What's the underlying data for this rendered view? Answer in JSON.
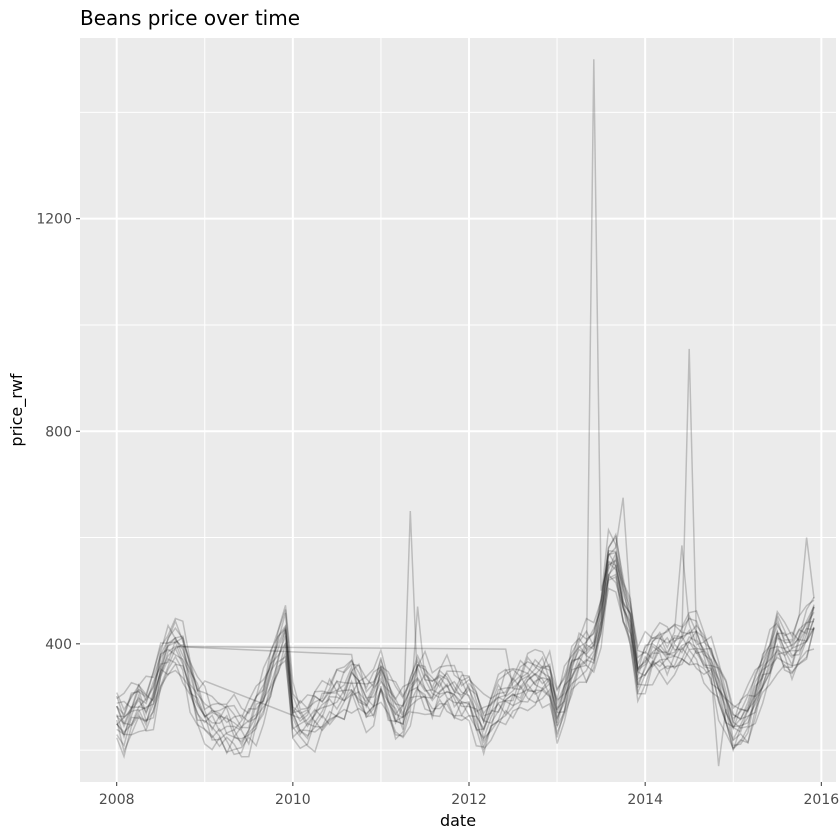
{
  "chart_data": {
    "type": "line",
    "title": "Beans price over time",
    "xlabel": "date",
    "ylabel": "price_rwf",
    "x_ticks": [
      "2008",
      "2010",
      "2012",
      "2014",
      "2016"
    ],
    "y_ticks": [
      400,
      800,
      1200
    ],
    "xlim": [
      "2007-08-01",
      "2016-03-01"
    ],
    "ylim": [
      140,
      1540
    ],
    "grid": true,
    "legend": "none",
    "line_color": "#000000",
    "line_alpha": 0.2,
    "background_color": "#ebebeb",
    "gridline_color": "#ffffff",
    "x": [
      "2008-01",
      "2008-02",
      "2008-03",
      "2008-04",
      "2008-05",
      "2008-06",
      "2008-07",
      "2008-08",
      "2008-09",
      "2008-10",
      "2008-11",
      "2008-12",
      "2009-01",
      "2009-02",
      "2009-03",
      "2009-04",
      "2009-05",
      "2009-06",
      "2009-07",
      "2009-08",
      "2009-09",
      "2009-10",
      "2009-11",
      "2009-12",
      "2010-01",
      "2010-02",
      "2010-03",
      "2010-04",
      "2010-05",
      "2010-06",
      "2010-07",
      "2010-08",
      "2010-09",
      "2010-10",
      "2010-11",
      "2010-12",
      "2011-01",
      "2011-02",
      "2011-03",
      "2011-04",
      "2011-05",
      "2011-06",
      "2011-07",
      "2011-08",
      "2011-09",
      "2011-10",
      "2011-11",
      "2011-12",
      "2012-01",
      "2012-02",
      "2012-03",
      "2012-04",
      "2012-05",
      "2012-06",
      "2012-07",
      "2012-08",
      "2012-09",
      "2012-10",
      "2012-11",
      "2012-12",
      "2013-01",
      "2013-02",
      "2013-03",
      "2013-04",
      "2013-05",
      "2013-06",
      "2013-07",
      "2013-08",
      "2013-09",
      "2013-10",
      "2013-11",
      "2013-12",
      "2014-01",
      "2014-02",
      "2014-03",
      "2014-04",
      "2014-05",
      "2014-06",
      "2014-07",
      "2014-08",
      "2014-09",
      "2014-10",
      "2014-11",
      "2014-12",
      "2015-01",
      "2015-02",
      "2015-03",
      "2015-04",
      "2015-05",
      "2015-06",
      "2015-07",
      "2015-08",
      "2015-09",
      "2015-10",
      "2015-11",
      "2015-12"
    ],
    "base_profile": [
      265,
      245,
      270,
      290,
      275,
      300,
      355,
      385,
      395,
      380,
      330,
      290,
      265,
      255,
      250,
      245,
      240,
      235,
      245,
      270,
      300,
      345,
      385,
      420,
      270,
      255,
      250,
      265,
      275,
      290,
      300,
      305,
      330,
      315,
      290,
      300,
      340,
      300,
      270,
      265,
      300,
      330,
      320,
      300,
      315,
      320,
      305,
      300,
      300,
      270,
      240,
      265,
      290,
      300,
      310,
      320,
      330,
      330,
      335,
      330,
      265,
      300,
      350,
      375,
      380,
      390,
      450,
      550,
      555,
      480,
      440,
      340,
      360,
      380,
      390,
      380,
      390,
      400,
      410,
      400,
      380,
      360,
      320,
      280,
      240,
      250,
      265,
      300,
      340,
      370,
      410,
      390,
      380,
      400,
      420,
      450
    ],
    "offsets": [
      -35,
      -28,
      -22,
      -16,
      -11,
      -6,
      -2,
      2,
      6,
      10,
      14,
      19,
      24,
      30,
      36,
      -40,
      42
    ],
    "spikes": [
      {
        "series": 3,
        "date": "2011-05",
        "value": 650
      },
      {
        "series": 5,
        "date": "2011-06",
        "value": 470
      },
      {
        "series": 7,
        "date": "2013-06",
        "value": 1500
      },
      {
        "series": 7,
        "date": "2013-07",
        "value": 500
      },
      {
        "series": 9,
        "date": "2014-07",
        "value": 955
      },
      {
        "series": 11,
        "date": "2013-10",
        "value": 675
      },
      {
        "series": 12,
        "date": "2014-06",
        "value": 585
      },
      {
        "series": 14,
        "date": "2015-11",
        "value": 600
      },
      {
        "series": 2,
        "date": "2014-11",
        "value": 170
      }
    ],
    "jumps": [
      {
        "series": 4,
        "from": "2008-09",
        "to": "2010-09",
        "from_value": 395,
        "to_value": 380
      },
      {
        "series": 8,
        "from": "2008-10",
        "to": "2012-06",
        "from_value": 395,
        "to_value": 390
      },
      {
        "series": 13,
        "from": "2009-01",
        "to": "2010-02",
        "from_value": 330,
        "to_value": 260
      }
    ]
  }
}
